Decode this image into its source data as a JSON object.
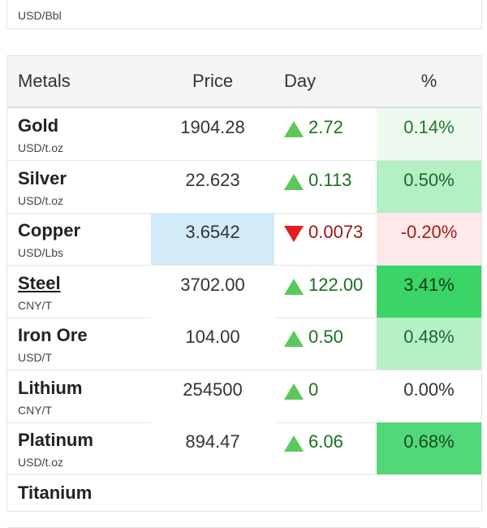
{
  "previous_card": {
    "unit": "USD/Bbl"
  },
  "table": {
    "header": [
      "Metals",
      "Price",
      "Day",
      "%"
    ],
    "rows": [
      {
        "name": "Gold",
        "unit": "USD/t.oz",
        "price": "1904.28",
        "day": "2.72",
        "pct": "0.14%",
        "direction": "up",
        "price_bg": "#ffffff",
        "pct_bg": "#eefaf0",
        "pct_color": "#1b7a2a"
      },
      {
        "name": "Silver",
        "unit": "USD/t.oz",
        "price": "22.623",
        "day": "0.113",
        "pct": "0.50%",
        "direction": "up",
        "price_bg": "#ffffff",
        "pct_bg": "#b3f0c3",
        "pct_color": "#1b6a27"
      },
      {
        "name": "Copper",
        "unit": "USD/Lbs",
        "price": "3.6542",
        "day": "0.0073",
        "pct": "-0.20%",
        "direction": "down",
        "price_bg": "#d3ebf8",
        "pct_bg": "#fde9e9",
        "pct_color": "#a51a1a"
      },
      {
        "name": "Steel",
        "unit": "CNY/T",
        "price": "3702.00",
        "day": "122.00",
        "pct": "3.41%",
        "direction": "up",
        "price_bg": "#ffffff",
        "pct_bg": "#3bd466",
        "pct_color": "#0e3d18",
        "link": true
      },
      {
        "name": "Iron Ore",
        "unit": "USD/T",
        "price": "104.00",
        "day": "0.50",
        "pct": "0.48%",
        "direction": "up",
        "price_bg": "#ffffff",
        "pct_bg": "#b6f1c5",
        "pct_color": "#1b6a27"
      },
      {
        "name": "Lithium",
        "unit": "CNY/T",
        "price": "254500",
        "day": "0",
        "pct": "0.00%",
        "direction": "up",
        "price_bg": "#ffffff",
        "pct_bg": "#ffffff",
        "pct_color": "#333333"
      },
      {
        "name": "Platinum",
        "unit": "USD/t.oz",
        "price": "894.47",
        "day": "6.06",
        "pct": "0.68%",
        "direction": "up",
        "price_bg": "#ffffff",
        "pct_bg": "#52d879",
        "pct_color": "#124d20"
      }
    ],
    "next_row": {
      "name": "Titanium"
    }
  }
}
